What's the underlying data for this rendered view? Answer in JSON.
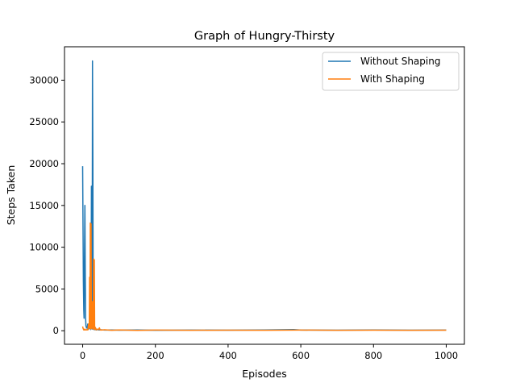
{
  "chart_data": {
    "type": "line",
    "title": "Graph of Hungry-Thirsty",
    "xlabel": "Episodes",
    "ylabel": "Steps Taken",
    "xlim": [
      -50,
      1050
    ],
    "ylim": [
      -1620,
      34000
    ],
    "xticks": [
      0,
      200,
      400,
      600,
      800,
      1000
    ],
    "yticks": [
      0,
      5000,
      10000,
      15000,
      20000,
      25000,
      30000
    ],
    "grid": false,
    "legend_position": "top-right",
    "series": [
      {
        "name": "Without Shaping",
        "color": "#1f77b4",
        "points": [
          [
            0,
            19700
          ],
          [
            1,
            12000
          ],
          [
            2,
            6000
          ],
          [
            3,
            2500
          ],
          [
            4,
            1500
          ],
          [
            5,
            9000
          ],
          [
            6,
            15000
          ],
          [
            7,
            8000
          ],
          [
            8,
            1500
          ],
          [
            9,
            600
          ],
          [
            10,
            400
          ],
          [
            12,
            300
          ],
          [
            14,
            800
          ],
          [
            16,
            200
          ],
          [
            18,
            300
          ],
          [
            20,
            400
          ],
          [
            22,
            150
          ],
          [
            23,
            900
          ],
          [
            24,
            17300
          ],
          [
            25,
            3000
          ],
          [
            26,
            200
          ],
          [
            27,
            32300
          ],
          [
            28,
            20000
          ],
          [
            29,
            500
          ],
          [
            30,
            150
          ],
          [
            32,
            300
          ],
          [
            34,
            120
          ],
          [
            36,
            250
          ],
          [
            38,
            100
          ],
          [
            40,
            150
          ],
          [
            45,
            90
          ],
          [
            50,
            120
          ],
          [
            60,
            80
          ],
          [
            80,
            100
          ],
          [
            100,
            70
          ],
          [
            150,
            90
          ],
          [
            200,
            60
          ],
          [
            300,
            80
          ],
          [
            400,
            70
          ],
          [
            500,
            90
          ],
          [
            580,
            150
          ],
          [
            600,
            80
          ],
          [
            700,
            70
          ],
          [
            800,
            90
          ],
          [
            900,
            70
          ],
          [
            1000,
            80
          ]
        ]
      },
      {
        "name": "With Shaping",
        "color": "#ff7f0e",
        "points": [
          [
            0,
            500
          ],
          [
            1,
            300
          ],
          [
            2,
            200
          ],
          [
            3,
            100
          ],
          [
            4,
            150
          ],
          [
            5,
            100
          ],
          [
            6,
            200
          ],
          [
            8,
            100
          ],
          [
            10,
            100
          ],
          [
            12,
            150
          ],
          [
            14,
            100
          ],
          [
            16,
            800
          ],
          [
            18,
            300
          ],
          [
            19,
            6400
          ],
          [
            20,
            300
          ],
          [
            21,
            12900
          ],
          [
            22,
            200
          ],
          [
            23,
            12800
          ],
          [
            24,
            500
          ],
          [
            25,
            300
          ],
          [
            27,
            3500
          ],
          [
            28,
            200
          ],
          [
            29,
            700
          ],
          [
            30,
            8600
          ],
          [
            31,
            200
          ],
          [
            32,
            8500
          ],
          [
            33,
            150
          ],
          [
            35,
            400
          ],
          [
            37,
            100
          ],
          [
            40,
            200
          ],
          [
            43,
            120
          ],
          [
            46,
            350
          ],
          [
            48,
            100
          ],
          [
            50,
            80
          ],
          [
            60,
            120
          ],
          [
            80,
            60
          ],
          [
            100,
            90
          ],
          [
            150,
            50
          ],
          [
            200,
            80
          ],
          [
            300,
            60
          ],
          [
            400,
            70
          ],
          [
            500,
            60
          ],
          [
            600,
            80
          ],
          [
            700,
            60
          ],
          [
            800,
            70
          ],
          [
            900,
            60
          ],
          [
            1000,
            70
          ]
        ]
      }
    ]
  }
}
